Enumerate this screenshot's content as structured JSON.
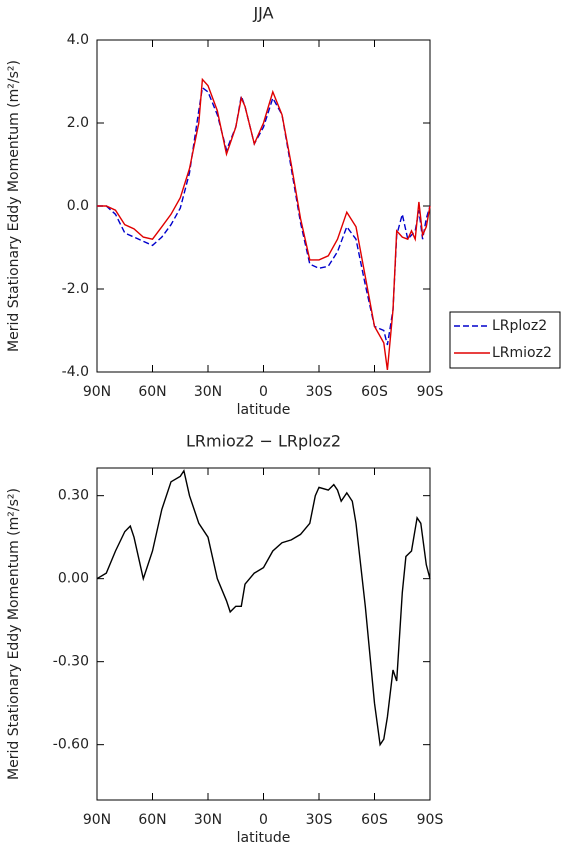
{
  "chart_data": [
    {
      "type": "line",
      "title": "JJA",
      "xlabel": "latitude",
      "ylabel": "Merid Stationary Eddy Momentum (m²/s²)",
      "x": [
        90,
        85,
        80,
        75,
        70,
        65,
        60,
        55,
        50,
        45,
        40,
        35,
        33,
        30,
        25,
        20,
        15,
        12,
        10,
        5,
        0,
        -5,
        -10,
        -15,
        -20,
        -25,
        -30,
        -35,
        -40,
        -45,
        -50,
        -55,
        -60,
        -65,
        -67,
        -70,
        -72,
        -75,
        -78,
        -80,
        -82,
        -84,
        -86,
        -88,
        -90
      ],
      "series": [
        {
          "name": "LRploz2",
          "color": "#0000cc",
          "style": "dashed",
          "values": [
            0,
            0,
            -0.2,
            -0.65,
            -0.75,
            -0.85,
            -0.95,
            -0.75,
            -0.45,
            -0.05,
            0.8,
            2.3,
            2.85,
            2.75,
            2.2,
            1.35,
            1.9,
            2.65,
            2.4,
            1.5,
            1.9,
            2.6,
            2.2,
            0.9,
            -0.4,
            -1.4,
            -1.5,
            -1.45,
            -1.1,
            -0.5,
            -0.8,
            -1.9,
            -2.9,
            -3.0,
            -3.35,
            -2.5,
            -0.7,
            -0.2,
            -0.8,
            -0.7,
            -0.6,
            -0.1,
            -0.8,
            -0.3,
            0
          ]
        },
        {
          "name": "LRmioz2",
          "color": "#e00000",
          "style": "solid",
          "values": [
            0,
            0,
            -0.1,
            -0.45,
            -0.55,
            -0.75,
            -0.8,
            -0.5,
            -0.2,
            0.2,
            0.9,
            2.0,
            3.05,
            2.9,
            2.3,
            1.25,
            1.9,
            2.6,
            2.4,
            1.5,
            2.0,
            2.75,
            2.2,
            1.0,
            -0.3,
            -1.3,
            -1.3,
            -1.2,
            -0.8,
            -0.15,
            -0.5,
            -1.7,
            -2.9,
            -3.3,
            -3.95,
            -2.5,
            -0.6,
            -0.75,
            -0.8,
            -0.6,
            -0.8,
            0.1,
            -0.7,
            -0.5,
            0
          ]
        }
      ],
      "xlim": [
        90,
        -90
      ],
      "xticks": [
        {
          "value": 90,
          "label": "90N"
        },
        {
          "value": 60,
          "label": "60N"
        },
        {
          "value": 30,
          "label": "30N"
        },
        0,
        {
          "value": -30,
          "label": "30S"
        },
        {
          "value": -60,
          "label": "60S"
        },
        {
          "value": -90,
          "label": "90S"
        }
      ],
      "ylim": [
        -4,
        4
      ],
      "yticks": [
        {
          "value": -4,
          "label": "-4.0"
        },
        {
          "value": -2,
          "label": "-2.0"
        },
        {
          "value": 0,
          "label": "0.0"
        },
        {
          "value": 2,
          "label": "2.0"
        },
        {
          "value": 4,
          "label": "4.0"
        }
      ],
      "legend": "outside-right"
    },
    {
      "type": "line",
      "title": "LRmioz2 − LRploz2",
      "xlabel": "latitude",
      "ylabel": "Merid Stationary Eddy Momentum (m²/s²)",
      "x": [
        90,
        85,
        80,
        75,
        72,
        70,
        65,
        60,
        55,
        50,
        45,
        43,
        40,
        35,
        30,
        25,
        20,
        18,
        15,
        12,
        10,
        5,
        0,
        -5,
        -10,
        -15,
        -20,
        -25,
        -28,
        -30,
        -35,
        -38,
        -40,
        -42,
        -45,
        -48,
        -50,
        -55,
        -60,
        -63,
        -65,
        -67,
        -70,
        -72,
        -75,
        -77,
        -80,
        -83,
        -85,
        -88,
        -90
      ],
      "values": [
        0,
        0.02,
        0.1,
        0.17,
        0.19,
        0.15,
        0.0,
        0.1,
        0.25,
        0.35,
        0.37,
        0.39,
        0.3,
        0.2,
        0.15,
        0.0,
        -0.08,
        -0.12,
        -0.1,
        -0.1,
        -0.02,
        0.02,
        0.04,
        0.1,
        0.13,
        0.14,
        0.16,
        0.2,
        0.3,
        0.33,
        0.32,
        0.34,
        0.32,
        0.28,
        0.31,
        0.28,
        0.2,
        -0.1,
        -0.45,
        -0.6,
        -0.58,
        -0.5,
        -0.33,
        -0.37,
        -0.05,
        0.08,
        0.1,
        0.22,
        0.2,
        0.05,
        0
      ],
      "color": "#000000",
      "xlim": [
        90,
        -90
      ],
      "xticks": [
        {
          "value": 90,
          "label": "90N"
        },
        {
          "value": 60,
          "label": "60N"
        },
        {
          "value": 30,
          "label": "30N"
        },
        0,
        {
          "value": -30,
          "label": "30S"
        },
        {
          "value": -60,
          "label": "60S"
        },
        {
          "value": -90,
          "label": "90S"
        }
      ],
      "ylim": [
        -0.8,
        0.4
      ],
      "yticks": [
        {
          "value": -0.6,
          "label": "-0.60"
        },
        {
          "value": -0.3,
          "label": "-0.30"
        },
        {
          "value": 0,
          "label": "0.00"
        },
        {
          "value": 0.3,
          "label": "0.30"
        }
      ]
    }
  ]
}
